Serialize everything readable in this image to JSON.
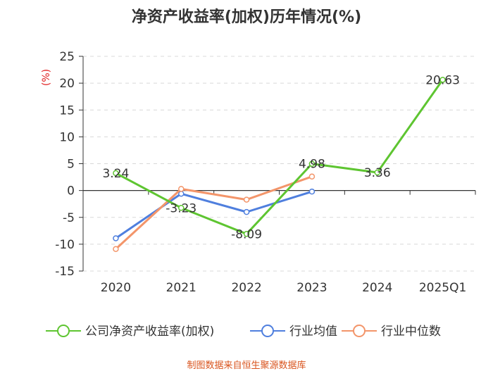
{
  "chart_data": {
    "type": "line",
    "title": "净资产收益率(加权)历年情况(%)",
    "ylabel": "(%)",
    "ylim": [
      -15,
      25
    ],
    "yticks": [
      25,
      20,
      15,
      10,
      5,
      0,
      -5,
      -10,
      -15
    ],
    "categories": [
      "2020",
      "2021",
      "2022",
      "2023",
      "2024",
      "2025Q1"
    ],
    "grid": true,
    "legend_position": "bottom",
    "series": [
      {
        "name": "公司净资产收益率(加权)",
        "color": "#5ec531",
        "values": [
          3.24,
          -3.23,
          -8.09,
          4.98,
          3.36,
          20.63
        ],
        "labels": [
          "3.24",
          "-3.23",
          "-8.09",
          "4.98",
          "3.36",
          "20.63"
        ]
      },
      {
        "name": "行业均值",
        "color": "#4f7fde",
        "values": [
          -8.9,
          -0.6,
          -4.0,
          -0.2,
          null,
          null
        ]
      },
      {
        "name": "行业中位数",
        "color": "#f3956a",
        "values": [
          -10.9,
          0.3,
          -1.7,
          2.6,
          null,
          null
        ]
      }
    ],
    "source": "制图数据来自恒生聚源数据库"
  }
}
